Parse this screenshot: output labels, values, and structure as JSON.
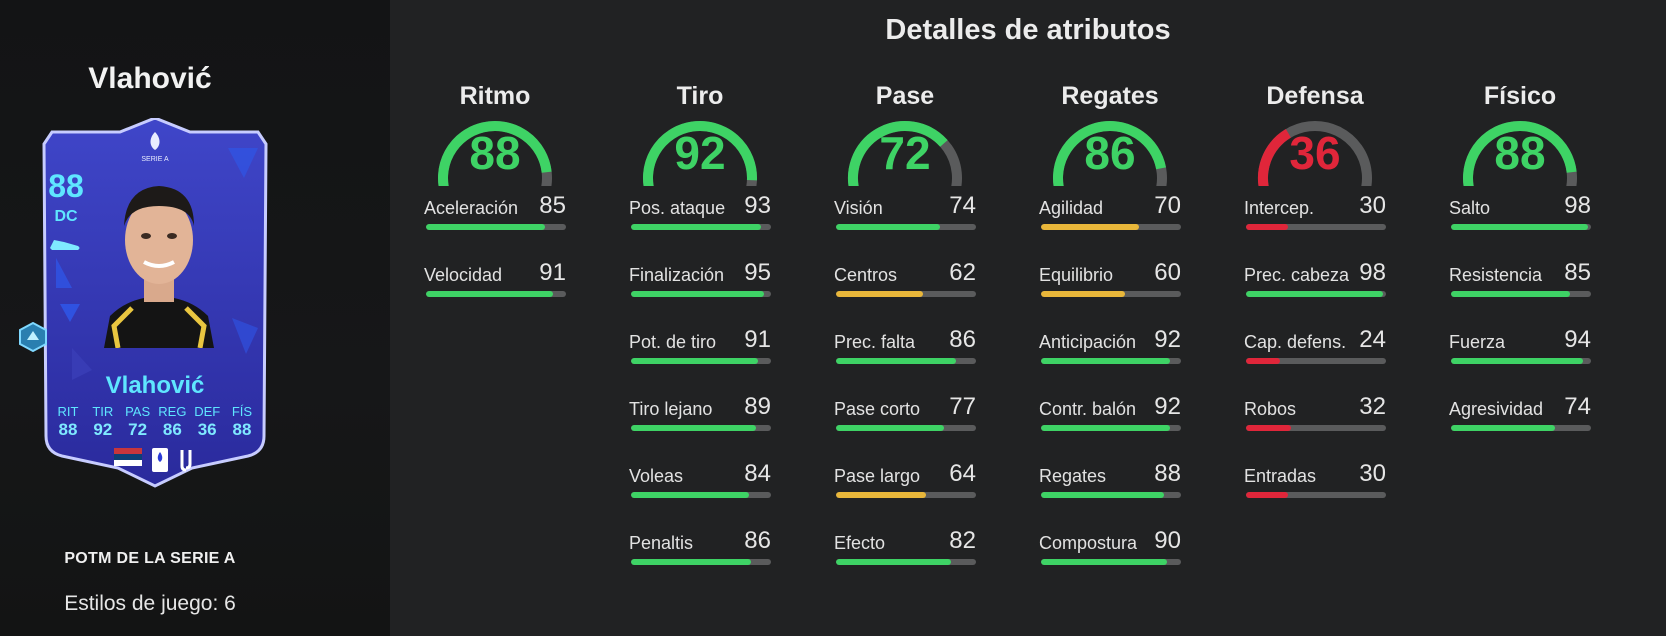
{
  "player": {
    "name": "Vlahović",
    "card_name": "Vlahović",
    "rating": "88",
    "position": "DC",
    "card_type": "POTM DE LA SERIE A",
    "playstyles": "Estilos de juego: 6",
    "league_badge_text": "SERIE A",
    "mini_stats": [
      {
        "label": "RIT",
        "value": "88"
      },
      {
        "label": "TIR",
        "value": "92"
      },
      {
        "label": "PAS",
        "value": "72"
      },
      {
        "label": "REG",
        "value": "86"
      },
      {
        "label": "DEF",
        "value": "36"
      },
      {
        "label": "FÍS",
        "value": "88"
      }
    ]
  },
  "colors": {
    "high": "#3ed365",
    "mid": "#e9b73a",
    "low": "#e0263a",
    "track": "#5a5b5c",
    "card_accent": "#5fe6ff"
  },
  "attributes": {
    "title": "Detalles de atributos",
    "categories": [
      {
        "name": "Ritmo",
        "value": 88,
        "color": "#3ed365",
        "stats": [
          {
            "name": "Aceleración",
            "value": 85,
            "color": "#3ed365"
          },
          {
            "name": "Velocidad",
            "value": 91,
            "color": "#3ed365"
          }
        ]
      },
      {
        "name": "Tiro",
        "value": 92,
        "color": "#3ed365",
        "stats": [
          {
            "name": "Pos. ataque",
            "value": 93,
            "color": "#3ed365"
          },
          {
            "name": "Finalización",
            "value": 95,
            "color": "#3ed365"
          },
          {
            "name": "Pot. de tiro",
            "value": 91,
            "color": "#3ed365"
          },
          {
            "name": "Tiro lejano",
            "value": 89,
            "color": "#3ed365"
          },
          {
            "name": "Voleas",
            "value": 84,
            "color": "#3ed365"
          },
          {
            "name": "Penaltis",
            "value": 86,
            "color": "#3ed365"
          }
        ]
      },
      {
        "name": "Pase",
        "value": 72,
        "color": "#3ed365",
        "stats": [
          {
            "name": "Visión",
            "value": 74,
            "color": "#3ed365"
          },
          {
            "name": "Centros",
            "value": 62,
            "color": "#e9b73a"
          },
          {
            "name": "Prec. falta",
            "value": 86,
            "color": "#3ed365"
          },
          {
            "name": "Pase corto",
            "value": 77,
            "color": "#3ed365"
          },
          {
            "name": "Pase largo",
            "value": 64,
            "color": "#e9b73a"
          },
          {
            "name": "Efecto",
            "value": 82,
            "color": "#3ed365"
          }
        ]
      },
      {
        "name": "Regates",
        "value": 86,
        "color": "#3ed365",
        "stats": [
          {
            "name": "Agilidad",
            "value": 70,
            "color": "#e9b73a"
          },
          {
            "name": "Equilibrio",
            "value": 60,
            "color": "#e9b73a"
          },
          {
            "name": "Anticipación",
            "value": 92,
            "color": "#3ed365"
          },
          {
            "name": "Contr. balón",
            "value": 92,
            "color": "#3ed365"
          },
          {
            "name": "Regates",
            "value": 88,
            "color": "#3ed365"
          },
          {
            "name": "Compostura",
            "value": 90,
            "color": "#3ed365"
          }
        ]
      },
      {
        "name": "Defensa",
        "value": 36,
        "color": "#e0263a",
        "stats": [
          {
            "name": "Intercep.",
            "value": 30,
            "color": "#e0263a"
          },
          {
            "name": "Prec. cabeza",
            "value": 98,
            "color": "#3ed365"
          },
          {
            "name": "Cap. defens.",
            "value": 24,
            "color": "#e0263a"
          },
          {
            "name": "Robos",
            "value": 32,
            "color": "#e0263a"
          },
          {
            "name": "Entradas",
            "value": 30,
            "color": "#e0263a"
          }
        ]
      },
      {
        "name": "Físico",
        "value": 88,
        "color": "#3ed365",
        "stats": [
          {
            "name": "Salto",
            "value": 98,
            "color": "#3ed365"
          },
          {
            "name": "Resistencia",
            "value": 85,
            "color": "#3ed365"
          },
          {
            "name": "Fuerza",
            "value": 94,
            "color": "#3ed365"
          },
          {
            "name": "Agresividad",
            "value": 74,
            "color": "#3ed365"
          }
        ]
      }
    ]
  }
}
